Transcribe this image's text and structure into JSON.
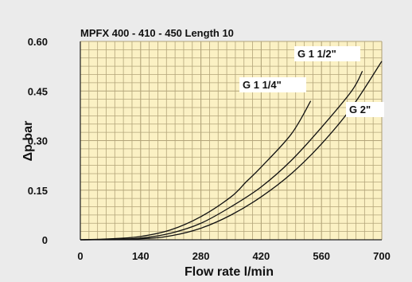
{
  "colors": {
    "page_background": "#ebebeb",
    "plot_background": "#fbf1c4",
    "grid_line": "#b3a57a",
    "curve": "#111111",
    "series_label_background": "#ffffff"
  },
  "chart_data": {
    "type": "line",
    "title": "MPFX 400 - 410 - 450 Length 10",
    "xlabel": "Flow rate l/min",
    "ylabel": "Δp bar",
    "xlim": [
      0,
      700
    ],
    "ylim": [
      0,
      0.6
    ],
    "xticks": [
      0,
      140,
      280,
      420,
      560,
      700
    ],
    "xtick_labels": [
      "0",
      "140",
      "280",
      "420",
      "560",
      "700"
    ],
    "yticks": [
      0,
      0.15,
      0.3,
      0.45,
      0.6
    ],
    "ytick_labels": [
      "0",
      "0.15",
      "0.30",
      "0.45",
      "0.60"
    ],
    "grid": true,
    "series": [
      {
        "name": "G 1 1/4\"",
        "x": [
          0,
          70,
          140,
          210,
          280,
          350,
          385,
          420,
          490,
          535
        ],
        "y": [
          0,
          0.003,
          0.01,
          0.03,
          0.07,
          0.13,
          0.175,
          0.22,
          0.32,
          0.42
        ]
      },
      {
        "name": "G 1 1/2\"",
        "x": [
          0,
          70,
          140,
          210,
          280,
          350,
          420,
          490,
          560,
          630,
          655
        ],
        "y": [
          0,
          0.001,
          0.005,
          0.02,
          0.05,
          0.1,
          0.16,
          0.24,
          0.34,
          0.45,
          0.51
        ]
      },
      {
        "name": "G 2\"",
        "x": [
          0,
          140,
          210,
          280,
          350,
          420,
          490,
          560,
          630,
          700
        ],
        "y": [
          0,
          0.003,
          0.012,
          0.035,
          0.075,
          0.13,
          0.2,
          0.29,
          0.4,
          0.54
        ]
      }
    ]
  }
}
